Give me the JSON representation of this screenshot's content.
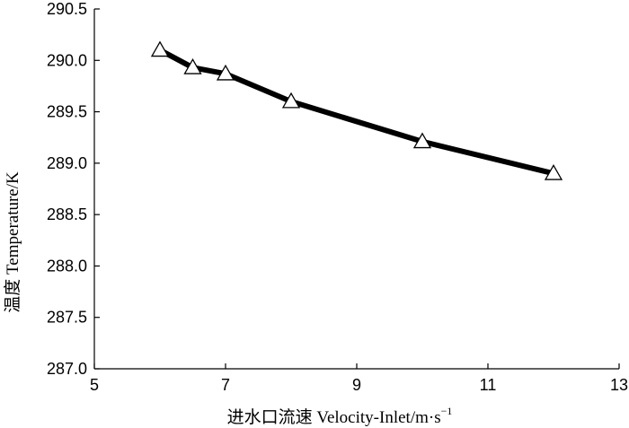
{
  "chart_data": {
    "type": "line",
    "xlabel": "进水口流速 Velocity-Inlet/m·s",
    "xlabel_superscript": "−1",
    "ylabel": "温度 Temperature/K",
    "xlim": [
      5,
      13
    ],
    "ylim": [
      287.0,
      290.5
    ],
    "x_ticks": [
      5,
      7,
      9,
      11,
      13
    ],
    "y_ticks": [
      287.0,
      287.5,
      288.0,
      288.5,
      289.0,
      289.5,
      290.0,
      290.5
    ],
    "x_tick_labels": [
      "5",
      "7",
      "9",
      "11",
      "13"
    ],
    "y_tick_labels": [
      "287.0",
      "287.5",
      "288.0",
      "288.5",
      "289.0",
      "289.5",
      "290.0",
      "290.5"
    ],
    "grid": false,
    "marker": "open-triangle",
    "line_color": "#000000",
    "series": [
      {
        "x": [
          6,
          6.5,
          7,
          8,
          10,
          12
        ],
        "y": [
          290.1,
          289.93,
          289.87,
          289.6,
          289.21,
          288.9
        ]
      }
    ]
  }
}
